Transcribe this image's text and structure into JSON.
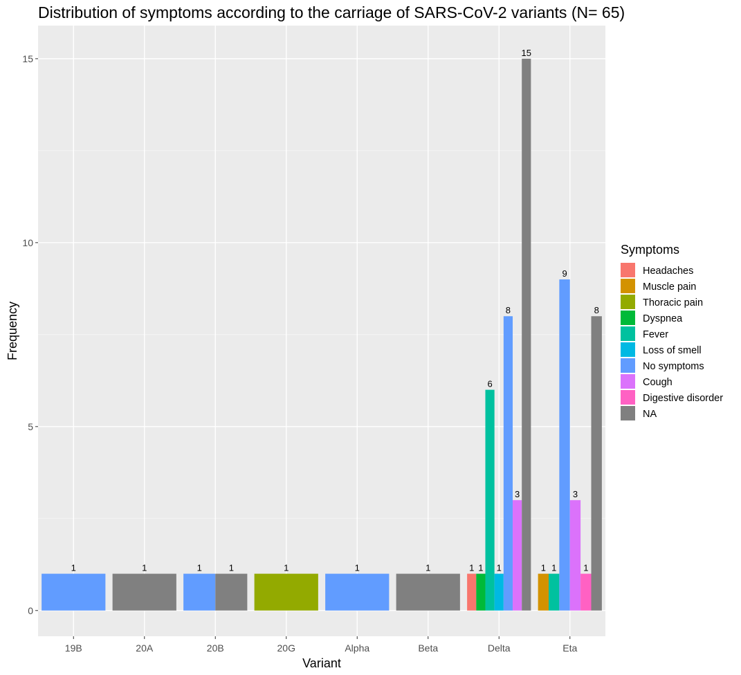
{
  "chart_data": {
    "type": "bar",
    "title": "Distribution of symptoms according to the carriage of SARS-CoV-2 variants (N= 65)",
    "xlabel": "Variant",
    "ylabel": "Frequency",
    "ylim": [
      -0.7,
      15.9
    ],
    "yticks": [
      0,
      5,
      10,
      15
    ],
    "grid": true,
    "legend_position": "right",
    "legend_title": "Symptoms",
    "categories": [
      "19B",
      "20A",
      "20B",
      "20G",
      "Alpha",
      "Beta",
      "Delta",
      "Eta"
    ],
    "symptoms": [
      {
        "name": "Headaches",
        "color": "#F8766D"
      },
      {
        "name": "Muscle pain",
        "color": "#D39200"
      },
      {
        "name": "Thoracic pain",
        "color": "#93AA00"
      },
      {
        "name": "Dyspnea",
        "color": "#00BA38"
      },
      {
        "name": "Fever",
        "color": "#00C19F"
      },
      {
        "name": "Loss of smell",
        "color": "#00B9E3"
      },
      {
        "name": "No symptoms",
        "color": "#619CFF"
      },
      {
        "name": "Cough",
        "color": "#DB72FB"
      },
      {
        "name": "Digestive disorder",
        "color": "#FF61C3"
      },
      {
        "name": "NA",
        "color": "#808080"
      }
    ],
    "groups": [
      {
        "variant": "19B",
        "bars": [
          {
            "symptom": "No symptoms",
            "value": 1
          }
        ]
      },
      {
        "variant": "20A",
        "bars": [
          {
            "symptom": "NA",
            "value": 1
          }
        ]
      },
      {
        "variant": "20B",
        "bars": [
          {
            "symptom": "No symptoms",
            "value": 1
          },
          {
            "symptom": "NA",
            "value": 1
          }
        ]
      },
      {
        "variant": "20G",
        "bars": [
          {
            "symptom": "Thoracic pain",
            "value": 1
          }
        ]
      },
      {
        "variant": "Alpha",
        "bars": [
          {
            "symptom": "No symptoms",
            "value": 1
          }
        ]
      },
      {
        "variant": "Beta",
        "bars": [
          {
            "symptom": "NA",
            "value": 1
          }
        ]
      },
      {
        "variant": "Delta",
        "bars": [
          {
            "symptom": "Headaches",
            "value": 1
          },
          {
            "symptom": "Dyspnea",
            "value": 1
          },
          {
            "symptom": "Fever",
            "value": 6
          },
          {
            "symptom": "Loss of smell",
            "value": 1
          },
          {
            "symptom": "No symptoms",
            "value": 8
          },
          {
            "symptom": "Cough",
            "value": 3
          },
          {
            "symptom": "NA",
            "value": 15
          }
        ]
      },
      {
        "variant": "Eta",
        "bars": [
          {
            "symptom": "Muscle pain",
            "value": 1
          },
          {
            "symptom": "Fever",
            "value": 1
          },
          {
            "symptom": "No symptoms",
            "value": 9
          },
          {
            "symptom": "Cough",
            "value": 3
          },
          {
            "symptom": "Digestive disorder",
            "value": 1
          },
          {
            "symptom": "NA",
            "value": 8
          }
        ]
      }
    ]
  }
}
